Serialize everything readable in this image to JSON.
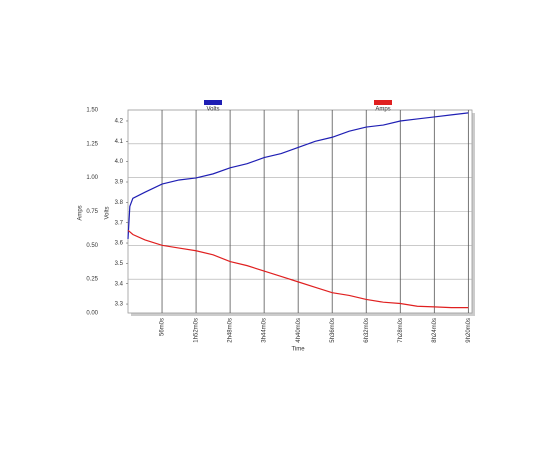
{
  "chart_data": {
    "type": "line",
    "x_label": "Time",
    "y_label": "Amps",
    "y2_label": "Volts",
    "x": [
      0,
      3,
      8,
      28,
      56,
      84,
      112,
      140,
      168,
      196,
      224,
      252,
      280,
      308,
      336,
      364,
      392,
      420,
      448,
      476,
      504,
      532,
      560
    ],
    "series": [
      {
        "name": "Volts",
        "color": "#1f1fb4",
        "axis": "y2",
        "values": [
          3.62,
          3.78,
          3.82,
          3.85,
          3.89,
          3.91,
          3.92,
          3.94,
          3.97,
          3.99,
          4.02,
          4.04,
          4.07,
          4.1,
          4.12,
          4.15,
          4.17,
          4.18,
          4.2,
          4.21,
          4.22,
          4.23,
          4.24
        ]
      },
      {
        "name": "Amps",
        "color": "#e02020",
        "axis": "y",
        "values": [
          0.61,
          0.6,
          0.58,
          0.54,
          0.5,
          0.48,
          0.46,
          0.43,
          0.38,
          0.35,
          0.31,
          0.27,
          0.23,
          0.19,
          0.15,
          0.13,
          0.1,
          0.08,
          0.07,
          0.05,
          0.045,
          0.04,
          0.04
        ]
      }
    ],
    "xlim": [
      0,
      566
    ],
    "xticks": [
      {
        "value": 56,
        "label": "56m0s"
      },
      {
        "value": 112,
        "label": "1h52m0s"
      },
      {
        "value": 168,
        "label": "2h48m0s"
      },
      {
        "value": 224,
        "label": "3h44m0s"
      },
      {
        "value": 280,
        "label": "4h40m0s"
      },
      {
        "value": 336,
        "label": "5h36m0s"
      },
      {
        "value": 392,
        "label": "6h32m0s"
      },
      {
        "value": 448,
        "label": "7h28m0s"
      },
      {
        "value": 504,
        "label": "8h24m0s"
      },
      {
        "value": 560,
        "label": "9h20m0s"
      }
    ],
    "ylim": [
      0,
      1.5
    ],
    "yticks": [
      {
        "value": 0,
        "label": "0.00"
      },
      {
        "value": 0.25,
        "label": "0.25"
      },
      {
        "value": 0.5,
        "label": "0.50"
      },
      {
        "value": 0.75,
        "label": "0.75"
      },
      {
        "value": 1,
        "label": "1.00"
      },
      {
        "value": 1.25,
        "label": "1.25"
      },
      {
        "value": 1.5,
        "label": "1.50"
      }
    ],
    "y2lim": [
      3.256,
      4.254
    ],
    "y2ticks": [
      3.3,
      3.4,
      3.5,
      3.6,
      3.7,
      3.8,
      3.9,
      {
        "value": 4,
        "label": "4.0"
      },
      4.1,
      4.2
    ],
    "grid": true
  }
}
